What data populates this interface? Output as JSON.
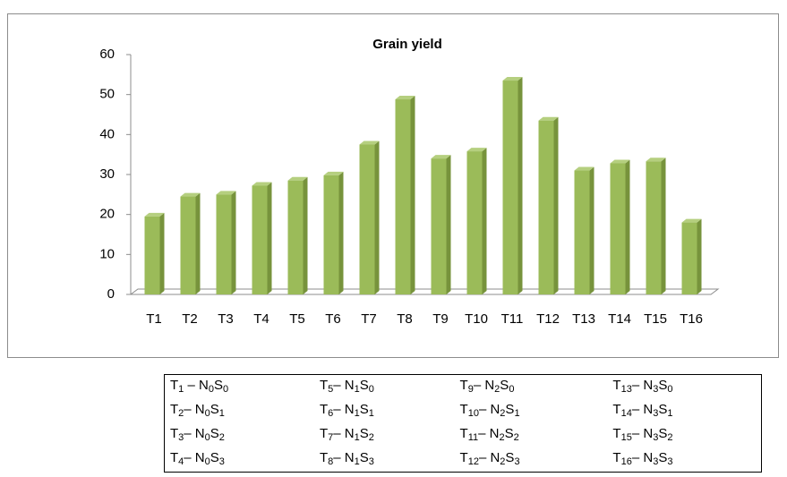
{
  "chart_data": {
    "type": "bar",
    "title": "Grain yield",
    "categories": [
      "T1",
      "T2",
      "T3",
      "T4",
      "T5",
      "T6",
      "T7",
      "T8",
      "T9",
      "T10",
      "T11",
      "T12",
      "T13",
      "T14",
      "T15",
      "T16"
    ],
    "values": [
      19.5,
      24.5,
      25,
      27.2,
      28.5,
      29.8,
      37.5,
      48.8,
      34,
      35.8,
      53.5,
      43.5,
      31,
      32.8,
      33.3,
      18
    ],
    "color": "#9bbb59",
    "ylim": [
      0,
      60
    ],
    "yticks": [
      0,
      10,
      20,
      30,
      40,
      50,
      60
    ],
    "grid": false
  },
  "table": {
    "rows": [
      [
        [
          "T",
          "1",
          " – N",
          "0",
          "S",
          "0"
        ],
        [
          "T",
          "5",
          "– N",
          "1",
          "S",
          "0"
        ],
        [
          "T",
          "9",
          "– N",
          "2",
          "S",
          "0"
        ],
        [
          "T",
          "13",
          "– N",
          "3",
          "S",
          "0"
        ]
      ],
      [
        [
          "T",
          "2",
          "– N",
          "0",
          "S",
          "1"
        ],
        [
          "T",
          "6",
          "– N",
          "1",
          "S",
          "1"
        ],
        [
          "T",
          "10",
          "– N",
          "2",
          "S",
          "1"
        ],
        [
          "T",
          "14",
          "– N",
          "3",
          "S",
          "1"
        ]
      ],
      [
        [
          "T",
          "3",
          "– N",
          "0",
          "S",
          "2"
        ],
        [
          "T",
          "7",
          "– N",
          "1",
          "S",
          "2"
        ],
        [
          "T",
          "11",
          "– N",
          "2",
          "S",
          "2"
        ],
        [
          "T",
          "15",
          "– N",
          "3",
          "S",
          "2"
        ]
      ],
      [
        [
          "T",
          "4",
          "– N",
          "0",
          "S",
          "3"
        ],
        [
          "T",
          "8",
          "– N",
          "1",
          "S",
          "3"
        ],
        [
          "T",
          "12",
          "– N",
          "2",
          "S",
          "3"
        ],
        [
          "T",
          "16",
          "– N",
          "3",
          "S",
          "3"
        ]
      ]
    ]
  }
}
